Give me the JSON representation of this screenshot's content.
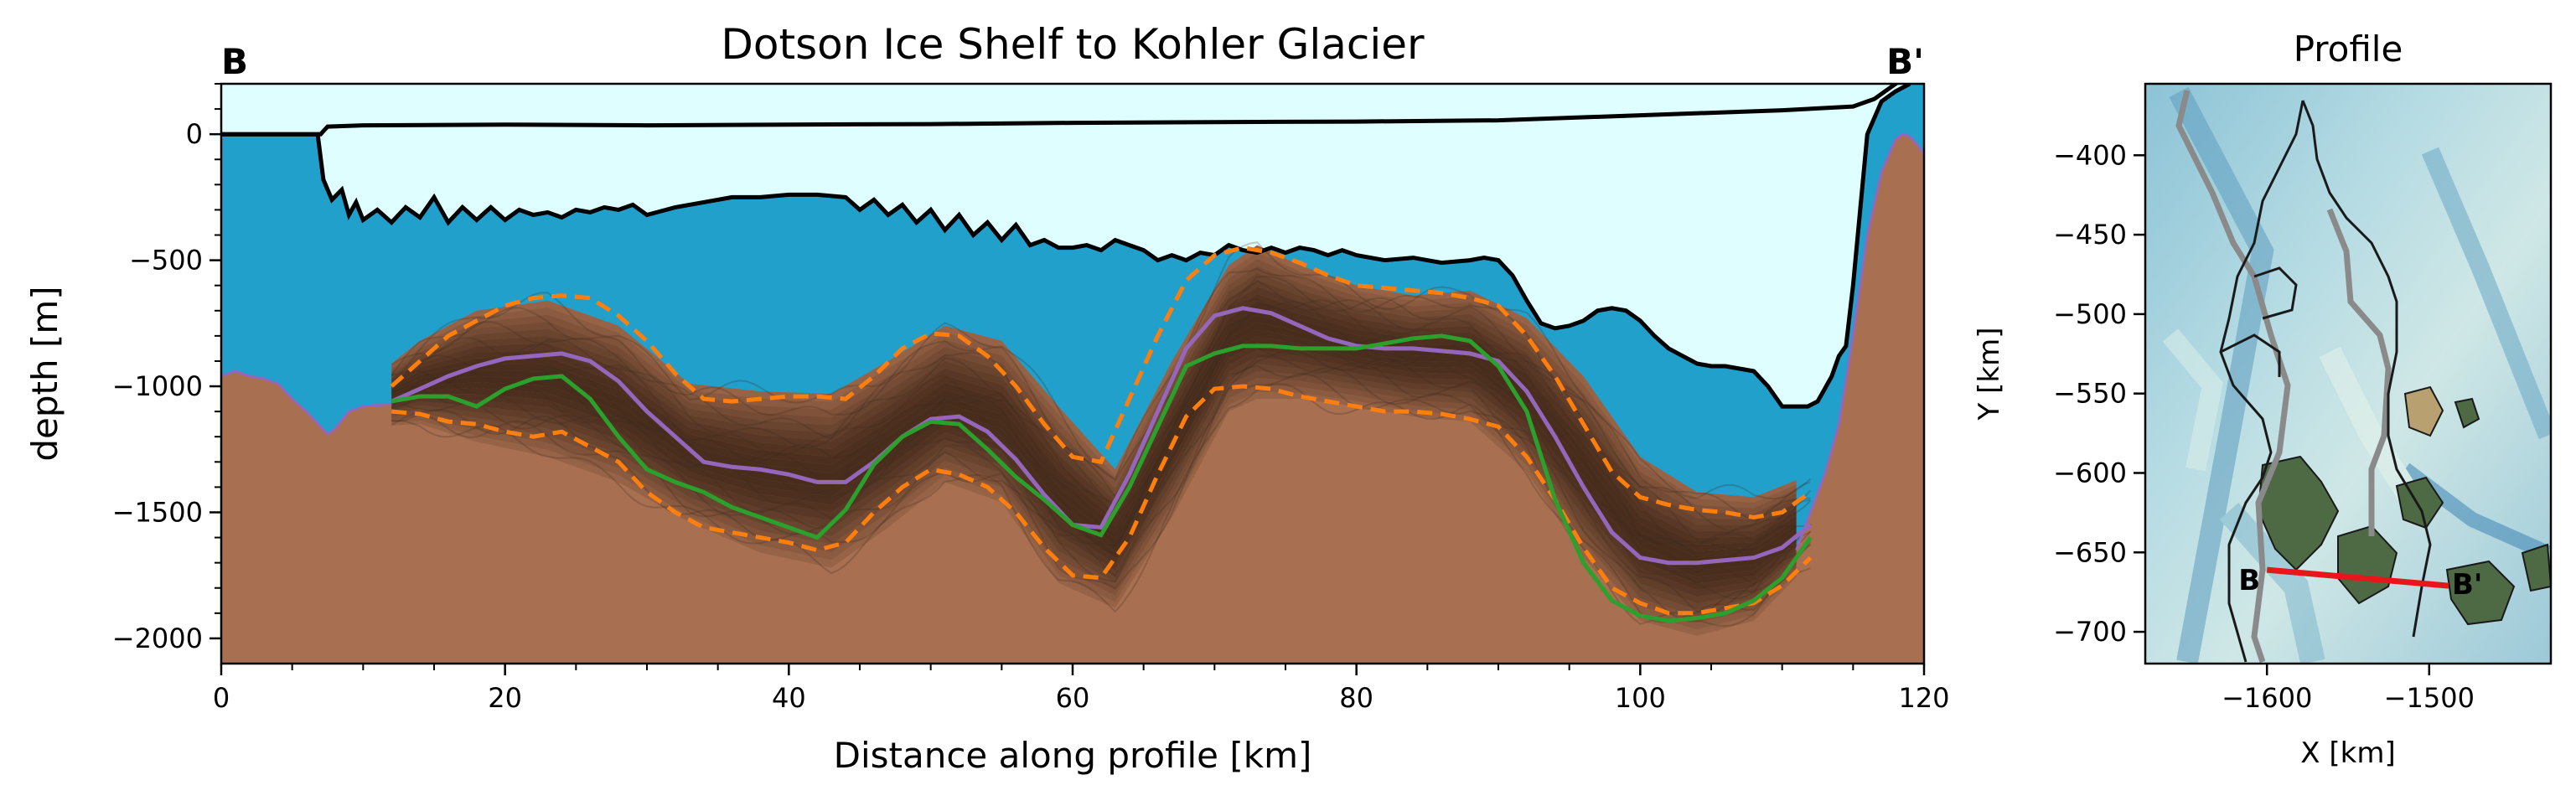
{
  "chart_data": [
    {
      "type": "area",
      "title": "Dotson Ice Shelf to Kohler Glacier",
      "xlabel": "Distance along profile [km]",
      "ylabel": "depth [m]",
      "xlim": [
        0,
        120
      ],
      "ylim": [
        -2100,
        200
      ],
      "x_ticks": [
        0,
        20,
        40,
        60,
        80,
        100,
        120
      ],
      "y_ticks": [
        0,
        -500,
        -1000,
        -1500,
        -2000
      ],
      "x_tick_labels": [
        "0",
        "20",
        "40",
        "60",
        "80",
        "100",
        "120"
      ],
      "y_tick_labels": [
        "0",
        "−500",
        "−1000",
        "−1500",
        "−2000"
      ],
      "corner_labels": {
        "start": "B",
        "end": "B'"
      },
      "colors": {
        "ice": "#dffeff",
        "ocean": "#21a0cc",
        "rock": "#a86f50",
        "ensemble": "#1a0d05",
        "dashed": "#ff7f0e",
        "mean": "#9467bd",
        "green": "#2ca02c"
      },
      "grid": false,
      "legend": "none",
      "ice_surface": {
        "x": [
          0,
          7,
          7.5,
          10,
          20,
          30,
          40,
          50,
          60,
          70,
          80,
          90,
          100,
          110,
          115,
          116.5,
          117.5,
          118.5,
          119
        ],
        "y": [
          0,
          0,
          30,
          35,
          38,
          35,
          38,
          40,
          45,
          48,
          50,
          55,
          75,
          95,
          110,
          140,
          180,
          220,
          280
        ]
      },
      "ice_base": {
        "x": [
          0,
          6.8,
          7.2,
          7.8,
          8.5,
          9,
          9.5,
          10,
          11,
          12,
          13,
          14,
          15,
          16,
          17,
          18,
          19,
          20,
          21,
          22,
          23,
          24,
          25,
          26,
          27,
          28,
          29,
          30,
          32,
          34,
          36,
          38,
          40,
          42,
          44,
          45,
          46,
          47,
          48,
          49,
          50,
          51,
          52,
          53,
          54,
          55,
          56,
          57,
          58,
          59,
          60,
          61,
          62,
          63,
          64,
          65,
          66,
          67,
          68,
          69,
          70,
          71,
          72,
          73,
          74,
          75,
          76,
          77,
          78,
          79,
          80,
          82,
          84,
          86,
          88,
          89,
          90,
          91,
          92,
          93,
          94,
          95,
          96,
          97,
          98,
          99,
          100,
          101,
          102,
          103,
          104,
          105,
          106,
          107,
          108,
          109,
          110,
          111,
          111.8,
          112.5,
          113,
          113.5,
          114,
          114.5,
          115,
          115.5,
          116,
          117,
          118,
          119
        ],
        "y": [
          0,
          0,
          -180,
          -260,
          -220,
          -320,
          -270,
          -340,
          -300,
          -350,
          -290,
          -330,
          -250,
          -350,
          -290,
          -340,
          -290,
          -340,
          -300,
          -320,
          -310,
          -330,
          -300,
          -310,
          -290,
          -300,
          -280,
          -320,
          -290,
          -270,
          -250,
          -250,
          -240,
          -240,
          -250,
          -300,
          -260,
          -320,
          -280,
          -350,
          -300,
          -380,
          -320,
          -400,
          -350,
          -420,
          -360,
          -440,
          -420,
          -450,
          -450,
          -440,
          -460,
          -420,
          -440,
          -460,
          -500,
          -480,
          -500,
          -470,
          -480,
          -440,
          -460,
          -470,
          -450,
          -470,
          -450,
          -460,
          -480,
          -460,
          -480,
          -500,
          -490,
          -510,
          -500,
          -490,
          -500,
          -560,
          -660,
          -750,
          -770,
          -760,
          -740,
          -700,
          -690,
          -700,
          -740,
          -800,
          -850,
          -880,
          -910,
          -920,
          -920,
          -930,
          -940,
          -1000,
          -1080,
          -1080,
          -1080,
          -1060,
          -1010,
          -960,
          -880,
          -840,
          -600,
          -300,
          0,
          130,
          170,
          200
        ]
      },
      "bed_surface": {
        "x": [
          0,
          1,
          2,
          3,
          4,
          5,
          6,
          7,
          7.5,
          8,
          9,
          10,
          11,
          12,
          111,
          112,
          113,
          114,
          115,
          116,
          117,
          118,
          118.5,
          119,
          119.5,
          120
        ],
        "y": [
          -960,
          -940,
          -960,
          -970,
          -990,
          -1050,
          -1100,
          -1160,
          -1190,
          -1170,
          -1100,
          -1080,
          -1075,
          -1070,
          -1650,
          -1500,
          -1350,
          -1150,
          -800,
          -400,
          -150,
          -20,
          0,
          -10,
          -40,
          -80
        ]
      },
      "envelope_upper": {
        "x": [
          10,
          14,
          18,
          23,
          28,
          33,
          38,
          43,
          47,
          51,
          55,
          59,
          63,
          67,
          71,
          73,
          76,
          80,
          84,
          88,
          92,
          96,
          100,
          104,
          108,
          112
        ],
        "y": [
          -1000,
          -820,
          -700,
          -660,
          -760,
          -990,
          -1020,
          -1030,
          -900,
          -760,
          -820,
          -1080,
          -1330,
          -900,
          -520,
          -440,
          -520,
          -600,
          -640,
          -620,
          -730,
          -960,
          -1280,
          -1420,
          -1440,
          -1350
        ]
      },
      "envelope_lower": {
        "x": [
          10,
          14,
          18,
          23,
          28,
          33,
          38,
          43,
          47,
          51,
          55,
          59,
          63,
          67,
          71,
          73,
          76,
          80,
          84,
          88,
          92,
          96,
          100,
          104,
          108,
          112
        ],
        "y": [
          -1160,
          -1150,
          -1220,
          -1280,
          -1380,
          -1540,
          -1660,
          -1720,
          -1560,
          -1380,
          -1460,
          -1780,
          -1880,
          -1520,
          -1100,
          -1050,
          -1050,
          -1080,
          -1120,
          -1140,
          -1340,
          -1680,
          -1930,
          -1990,
          -1930,
          -1700
        ]
      },
      "series": [
        {
          "line": "dashed",
          "x": [
            12,
            14,
            16,
            18,
            20,
            22,
            24,
            26,
            28,
            30,
            32,
            34,
            36,
            38,
            40,
            42,
            44,
            46,
            48,
            50,
            52,
            54,
            56,
            58,
            60,
            62,
            64,
            66,
            68,
            70,
            72,
            74,
            76,
            78,
            80,
            82,
            84,
            86,
            88,
            90,
            92,
            94,
            96,
            98,
            100,
            102,
            104,
            106,
            108,
            110,
            112
          ],
          "y": [
            -1000,
            -900,
            -800,
            -740,
            -680,
            -650,
            -640,
            -650,
            -720,
            -820,
            -950,
            -1050,
            -1060,
            -1050,
            -1040,
            -1040,
            -1050,
            -960,
            -850,
            -790,
            -800,
            -880,
            -1000,
            -1150,
            -1280,
            -1300,
            -1050,
            -800,
            -580,
            -480,
            -450,
            -470,
            -510,
            -560,
            -600,
            -610,
            -620,
            -630,
            -650,
            -680,
            -800,
            -960,
            -1150,
            -1340,
            -1440,
            -1470,
            -1490,
            -1500,
            -1520,
            -1500,
            -1420
          ]
        },
        {
          "line": "dashed",
          "x": [
            12,
            14,
            16,
            18,
            20,
            22,
            24,
            26,
            28,
            30,
            32,
            34,
            36,
            38,
            40,
            42,
            44,
            46,
            48,
            50,
            52,
            54,
            56,
            58,
            60,
            62,
            64,
            66,
            68,
            70,
            72,
            74,
            76,
            78,
            80,
            82,
            84,
            86,
            88,
            90,
            92,
            94,
            96,
            98,
            100,
            102,
            104,
            106,
            108,
            110,
            112
          ],
          "y": [
            -1100,
            -1110,
            -1140,
            -1150,
            -1180,
            -1200,
            -1180,
            -1240,
            -1300,
            -1420,
            -1500,
            -1560,
            -1580,
            -1600,
            -1620,
            -1650,
            -1620,
            -1500,
            -1400,
            -1330,
            -1350,
            -1400,
            -1500,
            -1640,
            -1750,
            -1760,
            -1600,
            -1350,
            -1120,
            -1010,
            -1000,
            -1010,
            -1040,
            -1060,
            -1080,
            -1100,
            -1100,
            -1110,
            -1130,
            -1160,
            -1280,
            -1450,
            -1640,
            -1800,
            -1860,
            -1900,
            -1900,
            -1880,
            -1860,
            -1790,
            -1680
          ]
        },
        {
          "line": "mean",
          "x": [
            12,
            14,
            16,
            18,
            20,
            22,
            24,
            26,
            28,
            30,
            32,
            34,
            36,
            38,
            40,
            42,
            44,
            46,
            48,
            50,
            52,
            54,
            56,
            58,
            60,
            62,
            64,
            66,
            68,
            70,
            72,
            74,
            76,
            78,
            80,
            82,
            84,
            86,
            88,
            90,
            92,
            94,
            96,
            98,
            100,
            102,
            104,
            106,
            108,
            110,
            112
          ],
          "y": [
            -1060,
            -1010,
            -960,
            -920,
            -890,
            -880,
            -870,
            -900,
            -980,
            -1100,
            -1200,
            -1300,
            -1320,
            -1330,
            -1350,
            -1380,
            -1380,
            -1300,
            -1200,
            -1130,
            -1120,
            -1180,
            -1290,
            -1430,
            -1550,
            -1560,
            -1350,
            -1100,
            -850,
            -720,
            -690,
            -710,
            -760,
            -810,
            -840,
            -850,
            -850,
            -860,
            -870,
            -900,
            -1020,
            -1200,
            -1400,
            -1580,
            -1680,
            -1700,
            -1700,
            -1690,
            -1680,
            -1640,
            -1550
          ]
        },
        {
          "line": "solid-green",
          "x": [
            12,
            14,
            16,
            18,
            20,
            22,
            24,
            26,
            28,
            30,
            32,
            34,
            36,
            38,
            40,
            42,
            44,
            46,
            48,
            50,
            52,
            54,
            56,
            58,
            60,
            62,
            64,
            66,
            68,
            70,
            72,
            74,
            76,
            78,
            80,
            82,
            84,
            86,
            88,
            90,
            92,
            94,
            96,
            98,
            100,
            102,
            104,
            106,
            108,
            110,
            112
          ],
          "y": [
            -1060,
            -1040,
            -1040,
            -1080,
            -1010,
            -970,
            -960,
            -1050,
            -1200,
            -1330,
            -1380,
            -1420,
            -1480,
            -1520,
            -1560,
            -1600,
            -1490,
            -1310,
            -1200,
            -1140,
            -1150,
            -1250,
            -1360,
            -1450,
            -1550,
            -1590,
            -1400,
            -1160,
            -920,
            -870,
            -840,
            -840,
            -850,
            -850,
            -850,
            -830,
            -810,
            -800,
            -820,
            -920,
            -1100,
            -1450,
            -1700,
            -1850,
            -1910,
            -1930,
            -1920,
            -1900,
            -1850,
            -1760,
            -1600
          ]
        }
      ]
    },
    {
      "type": "map",
      "title": "Profile",
      "xlabel": "X [km]",
      "ylabel": "Y [km]",
      "xlim": [
        -1675,
        -1425
      ],
      "ylim": [
        -720,
        -355
      ],
      "x_ticks": [
        -1600,
        -1500
      ],
      "y_ticks": [
        -400,
        -450,
        -500,
        -550,
        -600,
        -650,
        -700
      ],
      "x_tick_labels": [
        "−1600",
        "−1500"
      ],
      "y_tick_labels": [
        "−400",
        "−450",
        "−500",
        "−550",
        "−600",
        "−650",
        "−700"
      ],
      "colors": {
        "profile_line": "#e8161b",
        "outline": "#1a1a1a",
        "gray_line": "#8a8a8a",
        "rock_outcrop": "#4d6a45"
      },
      "profile_line": {
        "start": {
          "label": "B",
          "x": -1600,
          "y": -661
        },
        "end": {
          "label": "B'",
          "x": -1488,
          "y": -671
        }
      }
    }
  ]
}
